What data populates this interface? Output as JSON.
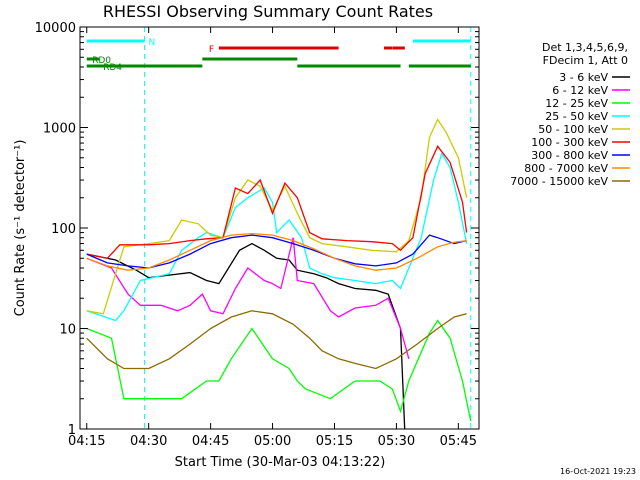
{
  "chart_data": {
    "type": "line",
    "title": "RHESSI Observing Summary Count Rates",
    "xlabel": "Start Time (30-Mar-03 04:13:22)",
    "ylabel": "Count Rate (s⁻¹ detector⁻¹)",
    "yscale": "log",
    "ylim": [
      1,
      10000
    ],
    "x_tick_labels": [
      "04:15",
      "04:30",
      "04:45",
      "05:00",
      "05:15",
      "05:30",
      "05:45"
    ],
    "y_tick_labels": [
      "1",
      "10",
      "100",
      "1000",
      "10000"
    ],
    "legend_header": [
      "Det 1,3,4,5,6,9,",
      "FDecim 1, Att 0"
    ],
    "series": [
      {
        "name": "3 - 6 keV",
        "color": "#000000",
        "points": [
          [
            "04:15",
            55
          ],
          [
            "04:22",
            48
          ],
          [
            "04:27",
            38
          ],
          [
            "04:30",
            32
          ],
          [
            "04:35",
            34
          ],
          [
            "04:40",
            36
          ],
          [
            "04:44",
            30
          ],
          [
            "04:47",
            28
          ],
          [
            "04:52",
            60
          ],
          [
            "04:55",
            70
          ],
          [
            "04:58",
            60
          ],
          [
            "05:01",
            50
          ],
          [
            "05:04",
            48
          ],
          [
            "05:06",
            38
          ],
          [
            "05:10",
            35
          ],
          [
            "05:13",
            32
          ],
          [
            "05:16",
            28
          ],
          [
            "05:20",
            25
          ],
          [
            "05:25",
            24
          ],
          [
            "05:28",
            22
          ],
          [
            "05:31",
            10
          ],
          [
            "05:32",
            1
          ]
        ]
      },
      {
        "name": "6 - 12 keV",
        "color": "#ff00ff",
        "points": [
          [
            "04:15",
            50
          ],
          [
            "04:21",
            40
          ],
          [
            "04:25",
            22
          ],
          [
            "04:28",
            17
          ],
          [
            "04:33",
            17
          ],
          [
            "04:37",
            15
          ],
          [
            "04:40",
            17
          ],
          [
            "04:43",
            22
          ],
          [
            "04:45",
            15
          ],
          [
            "04:48",
            14
          ],
          [
            "04:51",
            25
          ],
          [
            "04:54",
            40
          ],
          [
            "04:58",
            30
          ],
          [
            "05:00",
            28
          ],
          [
            "05:02",
            25
          ],
          [
            "05:05",
            80
          ],
          [
            "05:06",
            30
          ],
          [
            "05:10",
            28
          ],
          [
            "05:14",
            15
          ],
          [
            "05:16",
            13
          ],
          [
            "05:20",
            16
          ],
          [
            "05:25",
            17
          ],
          [
            "05:28",
            20
          ],
          [
            "05:31",
            10
          ],
          [
            "05:33",
            5
          ]
        ]
      },
      {
        "name": "12 - 25 keV",
        "color": "#00ff00",
        "points": [
          [
            "04:15",
            10
          ],
          [
            "04:21",
            8
          ],
          [
            "04:24",
            2
          ],
          [
            "04:30",
            2
          ],
          [
            "04:38",
            2
          ],
          [
            "04:44",
            3
          ],
          [
            "04:47",
            3
          ],
          [
            "04:50",
            5
          ],
          [
            "04:55",
            10
          ],
          [
            "05:00",
            5
          ],
          [
            "05:04",
            4
          ],
          [
            "05:06",
            3
          ],
          [
            "05:08",
            2.5
          ],
          [
            "05:14",
            2
          ],
          [
            "05:20",
            3
          ],
          [
            "05:26",
            3
          ],
          [
            "05:29",
            2.5
          ],
          [
            "05:31",
            1.5
          ],
          [
            "05:33",
            3
          ],
          [
            "05:38",
            9
          ],
          [
            "05:40",
            12
          ],
          [
            "05:43",
            8
          ],
          [
            "05:46",
            3
          ],
          [
            "05:48",
            1.2
          ]
        ]
      },
      {
        "name": "25 - 50 keV",
        "color": "#00ffff",
        "points": [
          [
            "04:15",
            15
          ],
          [
            "04:22",
            12
          ],
          [
            "04:24",
            15
          ],
          [
            "04:28",
            30
          ],
          [
            "04:35",
            35
          ],
          [
            "04:38",
            60
          ],
          [
            "04:42",
            80
          ],
          [
            "04:44",
            90
          ],
          [
            "04:48",
            80
          ],
          [
            "04:51",
            160
          ],
          [
            "04:54",
            200
          ],
          [
            "04:58",
            250
          ],
          [
            "05:00",
            180
          ],
          [
            "05:01",
            90
          ],
          [
            "05:04",
            120
          ],
          [
            "05:07",
            80
          ],
          [
            "05:09",
            40
          ],
          [
            "05:12",
            35
          ],
          [
            "05:15",
            32
          ],
          [
            "05:20",
            30
          ],
          [
            "05:25",
            28
          ],
          [
            "05:29",
            30
          ],
          [
            "05:31",
            25
          ],
          [
            "05:33",
            40
          ],
          [
            "05:36",
            80
          ],
          [
            "05:39",
            300
          ],
          [
            "05:41",
            550
          ],
          [
            "05:43",
            400
          ],
          [
            "05:45",
            180
          ],
          [
            "05:47",
            70
          ]
        ]
      },
      {
        "name": "50 - 100 keV",
        "color": "#cccc00",
        "points": [
          [
            "04:15",
            15
          ],
          [
            "04:19",
            14
          ],
          [
            "04:24",
            65
          ],
          [
            "04:30",
            70
          ],
          [
            "04:35",
            75
          ],
          [
            "04:38",
            120
          ],
          [
            "04:42",
            110
          ],
          [
            "04:45",
            85
          ],
          [
            "04:48",
            80
          ],
          [
            "04:51",
            200
          ],
          [
            "04:54",
            300
          ],
          [
            "04:57",
            260
          ],
          [
            "05:00",
            150
          ],
          [
            "05:03",
            260
          ],
          [
            "05:06",
            140
          ],
          [
            "05:09",
            80
          ],
          [
            "05:12",
            70
          ],
          [
            "05:18",
            65
          ],
          [
            "05:24",
            60
          ],
          [
            "05:30",
            58
          ],
          [
            "05:33",
            75
          ],
          [
            "05:36",
            200
          ],
          [
            "05:38",
            800
          ],
          [
            "05:40",
            1200
          ],
          [
            "05:42",
            900
          ],
          [
            "05:45",
            500
          ],
          [
            "05:47",
            200
          ]
        ]
      },
      {
        "name": "100 - 300 keV",
        "color": "#ff0000",
        "points": [
          [
            "04:15",
            55
          ],
          [
            "04:20",
            50
          ],
          [
            "04:23",
            68
          ],
          [
            "04:30",
            68
          ],
          [
            "04:35",
            70
          ],
          [
            "04:40",
            75
          ],
          [
            "04:44",
            78
          ],
          [
            "04:48",
            80
          ],
          [
            "04:51",
            250
          ],
          [
            "04:54",
            220
          ],
          [
            "04:57",
            300
          ],
          [
            "05:00",
            140
          ],
          [
            "05:03",
            280
          ],
          [
            "05:06",
            200
          ],
          [
            "05:09",
            90
          ],
          [
            "05:12",
            78
          ],
          [
            "05:18",
            75
          ],
          [
            "05:24",
            73
          ],
          [
            "05:29",
            70
          ],
          [
            "05:31",
            60
          ],
          [
            "05:34",
            80
          ],
          [
            "05:37",
            350
          ],
          [
            "05:40",
            650
          ],
          [
            "05:43",
            450
          ],
          [
            "05:46",
            180
          ],
          [
            "05:47",
            90
          ]
        ]
      },
      {
        "name": "300 - 800 keV",
        "color": "#0000ff",
        "points": [
          [
            "04:15",
            55
          ],
          [
            "04:20",
            45
          ],
          [
            "04:25",
            42
          ],
          [
            "04:30",
            40
          ],
          [
            "04:35",
            45
          ],
          [
            "04:40",
            55
          ],
          [
            "04:45",
            70
          ],
          [
            "04:50",
            80
          ],
          [
            "04:55",
            85
          ],
          [
            "05:00",
            80
          ],
          [
            "05:05",
            70
          ],
          [
            "05:10",
            60
          ],
          [
            "05:15",
            50
          ],
          [
            "05:20",
            44
          ],
          [
            "05:25",
            42
          ],
          [
            "05:30",
            45
          ],
          [
            "05:34",
            55
          ],
          [
            "05:38",
            85
          ],
          [
            "05:40",
            80
          ],
          [
            "05:44",
            70
          ],
          [
            "05:47",
            75
          ]
        ]
      },
      {
        "name": "800 - 7000 keV",
        "color": "#ff8800",
        "points": [
          [
            "04:15",
            50
          ],
          [
            "04:20",
            42
          ],
          [
            "04:25",
            38
          ],
          [
            "04:30",
            40
          ],
          [
            "04:35",
            48
          ],
          [
            "04:40",
            60
          ],
          [
            "04:45",
            75
          ],
          [
            "04:50",
            85
          ],
          [
            "04:55",
            88
          ],
          [
            "05:00",
            85
          ],
          [
            "05:05",
            75
          ],
          [
            "05:10",
            62
          ],
          [
            "05:15",
            50
          ],
          [
            "05:20",
            42
          ],
          [
            "05:25",
            38
          ],
          [
            "05:30",
            40
          ],
          [
            "05:35",
            50
          ],
          [
            "05:40",
            65
          ],
          [
            "05:44",
            72
          ],
          [
            "05:47",
            75
          ]
        ]
      },
      {
        "name": "7000 - 15000 keV",
        "color": "#8b6a00",
        "points": [
          [
            "04:15",
            8
          ],
          [
            "04:20",
            5
          ],
          [
            "04:24",
            4
          ],
          [
            "04:30",
            4
          ],
          [
            "04:35",
            5
          ],
          [
            "04:40",
            7
          ],
          [
            "04:45",
            10
          ],
          [
            "04:50",
            13
          ],
          [
            "04:55",
            15
          ],
          [
            "05:00",
            14
          ],
          [
            "05:05",
            11
          ],
          [
            "05:09",
            8
          ],
          [
            "05:12",
            6
          ],
          [
            "05:16",
            5
          ],
          [
            "05:20",
            4.5
          ],
          [
            "05:25",
            4
          ],
          [
            "05:30",
            5
          ],
          [
            "05:35",
            7
          ],
          [
            "05:40",
            10
          ],
          [
            "05:44",
            13
          ],
          [
            "05:47",
            14
          ]
        ]
      }
    ],
    "flags": [
      {
        "label": "N",
        "color": "#00ffff",
        "segments": [
          [
            "04:15",
            "04:29"
          ],
          [
            "05:34",
            "05:48"
          ]
        ],
        "dashed_markers": [
          "04:29",
          "05:48"
        ]
      },
      {
        "label": "F",
        "color": "#dd0000",
        "segments": [
          [
            "04:47",
            "05:16"
          ],
          [
            "05:29",
            "05:32"
          ]
        ],
        "dashed_segments": [
          [
            "05:27",
            "05:32"
          ]
        ]
      },
      {
        "label": "RD0",
        "color": "#008800",
        "segments": [
          [
            "04:15",
            "04:18"
          ],
          [
            "04:43",
            "05:06"
          ]
        ]
      },
      {
        "label": "RD4",
        "color": "#008800",
        "segments": [
          [
            "04:15",
            "04:43"
          ],
          [
            "05:06",
            "05:31"
          ],
          [
            "05:33",
            "05:48"
          ]
        ]
      }
    ],
    "footer_stamp": "16-Oct-2021 19:23",
    "grid": false,
    "legend_position": "right"
  }
}
